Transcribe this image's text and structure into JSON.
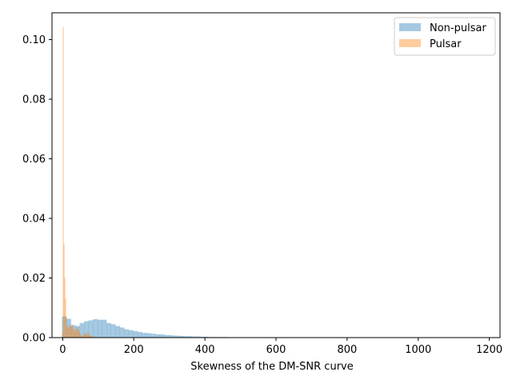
{
  "chart_data": {
    "type": "bar",
    "subtype": "overlaid-histogram",
    "xlabel": "Skewness of the DM-SNR curve",
    "ylabel": "",
    "title": "",
    "xlim": [
      -30,
      1230
    ],
    "ylim": [
      0,
      0.109
    ],
    "xticks": [
      0,
      200,
      400,
      600,
      800,
      1000,
      1200
    ],
    "yticks": [
      0.0,
      0.02,
      0.04,
      0.06,
      0.08,
      0.1
    ],
    "ytick_labels": [
      "0.00",
      "0.02",
      "0.04",
      "0.06",
      "0.08",
      "0.10"
    ],
    "legend_position": "upper right",
    "series": [
      {
        "name": "Non-pulsar",
        "color": "#1f77b4",
        "alpha": 0.4,
        "bin_width": 12.5,
        "bin_start": -2,
        "values": [
          0.0071,
          0.0063,
          0.0042,
          0.0039,
          0.0049,
          0.0055,
          0.0058,
          0.0062,
          0.006,
          0.006,
          0.0049,
          0.0045,
          0.0039,
          0.0034,
          0.0028,
          0.0025,
          0.0022,
          0.0019,
          0.0016,
          0.0015,
          0.0013,
          0.0011,
          0.0011,
          0.0009,
          0.0008,
          0.0007,
          0.0006,
          0.0005,
          0.0005,
          0.0004,
          0.0004,
          0.0003,
          0.0003,
          0.0002,
          0.0002,
          0.0002,
          0.0002,
          0.0001,
          0.0001,
          0.0001,
          0.0001,
          0.0001,
          0.0001,
          0.0001,
          0.0001,
          0.0001,
          0.0001,
          0.0001,
          0.0001,
          0.0001
        ]
      },
      {
        "name": "Pulsar",
        "color": "#ff7f0e",
        "alpha": 0.4,
        "bin_width": 2.1,
        "bin_start": -1.7,
        "values": [
          0.0015,
          0.1042,
          0.0314,
          0.0201,
          0.0132,
          0.0068,
          0.0039,
          0.0033,
          0.0035,
          0.004,
          0.0039,
          0.0035,
          0.0038,
          0.0044,
          0.0038,
          0.003,
          0.0025,
          0.002,
          0.0026,
          0.0034,
          0.0033,
          0.003,
          0.0022,
          0.0015,
          0.001,
          0.0007,
          0.0006,
          0.0004,
          0.0007,
          0.0013,
          0.0012,
          0.0016,
          0.0011,
          0.001,
          0.002,
          0.0011,
          0.0008,
          0.0007,
          0.0006,
          0.0005,
          0.0004,
          0.0004,
          0.0003,
          0.0002,
          0.0002,
          0.0002,
          0.0002,
          0.0001,
          0.0001,
          0.0001
        ]
      }
    ]
  }
}
